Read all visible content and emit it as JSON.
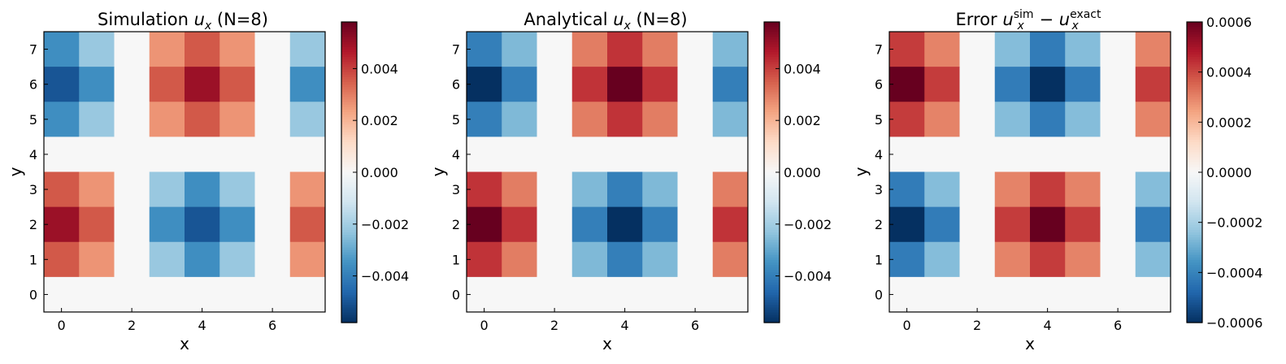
{
  "chart_data": [
    {
      "type": "heatmap",
      "title_main": "Simulation ",
      "title_sym": "u",
      "title_sub": "x",
      "title_tail": " (N=8)",
      "xlabel": "x",
      "ylabel": "y",
      "xticks": [
        0,
        2,
        4,
        6
      ],
      "yticks": [
        0,
        1,
        2,
        3,
        4,
        5,
        6,
        7
      ],
      "vlim": [
        -0.0058,
        0.0058
      ],
      "colorbar_ticks": [
        -0.004,
        -0.002,
        0.0,
        0.002,
        0.004
      ],
      "colorbar_tick_labels": [
        "−0.004",
        "−0.002",
        "0.000",
        "0.002",
        "0.004"
      ],
      "grid_rows_top_to_bottom_y": [
        7,
        6,
        5,
        4,
        3,
        2,
        1,
        0
      ],
      "values": [
        [
          -0.0036,
          -0.0022,
          0,
          0.0026,
          0.0036,
          0.0026,
          0,
          -0.0022
        ],
        [
          -0.005,
          -0.0036,
          0,
          0.0036,
          0.005,
          0.0036,
          0,
          -0.0036
        ],
        [
          -0.0036,
          -0.0022,
          0,
          0.0026,
          0.0036,
          0.0026,
          0,
          -0.0022
        ],
        [
          0,
          0,
          0,
          0,
          0,
          0,
          0,
          0
        ],
        [
          0.0036,
          0.0026,
          0,
          -0.0022,
          -0.0036,
          -0.0022,
          0,
          0.0026
        ],
        [
          0.005,
          0.0036,
          0,
          -0.0036,
          -0.005,
          -0.0036,
          0,
          0.0036
        ],
        [
          0.0036,
          0.0026,
          0,
          -0.0022,
          -0.0036,
          -0.0022,
          0,
          0.0026
        ],
        [
          0,
          0,
          0,
          0,
          0,
          0,
          0,
          0
        ]
      ]
    },
    {
      "type": "heatmap",
      "title_main": "Analytical ",
      "title_sym": "u",
      "title_sub": "x",
      "title_tail": " (N=8)",
      "xlabel": "x",
      "ylabel": "y",
      "xticks": [
        0,
        2,
        4,
        6
      ],
      "yticks": [
        0,
        1,
        2,
        3,
        4,
        5,
        6,
        7
      ],
      "vlim": [
        -0.0058,
        0.0058
      ],
      "colorbar_ticks": [
        -0.004,
        -0.002,
        0.0,
        0.002,
        0.004
      ],
      "colorbar_tick_labels": [
        "−0.004",
        "−0.002",
        "0.000",
        "0.002",
        "0.004"
      ],
      "grid_rows_top_to_bottom_y": [
        7,
        6,
        5,
        4,
        3,
        2,
        1,
        0
      ],
      "values": [
        [
          -0.004,
          -0.0026,
          0,
          0.003,
          0.0042,
          0.003,
          0,
          -0.0026
        ],
        [
          -0.0058,
          -0.004,
          0,
          0.0042,
          0.0058,
          0.0042,
          0,
          -0.004
        ],
        [
          -0.004,
          -0.0026,
          0,
          0.003,
          0.0042,
          0.003,
          0,
          -0.0026
        ],
        [
          0,
          0,
          0,
          0,
          0,
          0,
          0,
          0
        ],
        [
          0.0042,
          0.003,
          0,
          -0.0026,
          -0.004,
          -0.0026,
          0,
          0.003
        ],
        [
          0.0058,
          0.0042,
          0,
          -0.004,
          -0.0058,
          -0.004,
          0,
          0.0042
        ],
        [
          0.0042,
          0.003,
          0,
          -0.0026,
          -0.004,
          -0.0026,
          0,
          0.003
        ],
        [
          0,
          0,
          0,
          0,
          0,
          0,
          0,
          0
        ]
      ]
    },
    {
      "type": "heatmap",
      "title_main": "Error ",
      "title_sym": "u",
      "title_sub": "x",
      "title_sup1": "sim",
      "title_minus": " − ",
      "title_sup2": "exact",
      "xlabel": "x",
      "ylabel": "y",
      "xticks": [
        0,
        2,
        4,
        6
      ],
      "yticks": [
        0,
        1,
        2,
        3,
        4,
        5,
        6,
        7
      ],
      "vlim": [
        -0.0006,
        0.0006
      ],
      "colorbar_ticks": [
        -0.0006,
        -0.0004,
        -0.0002,
        0.0,
        0.0002,
        0.0004,
        0.0006
      ],
      "colorbar_tick_labels": [
        "−0.0006",
        "−0.0004",
        "−0.0002",
        "0.0000",
        "0.0002",
        "0.0004",
        "0.0006"
      ],
      "grid_rows_top_to_bottom_y": [
        7,
        6,
        5,
        4,
        3,
        2,
        1,
        0
      ],
      "values": [
        [
          0.00042,
          0.0003,
          0,
          -0.00026,
          -0.00042,
          -0.00026,
          0,
          0.0003
        ],
        [
          0.0006,
          0.00042,
          0,
          -0.00042,
          -0.0006,
          -0.00042,
          0,
          0.00042
        ],
        [
          0.00042,
          0.0003,
          0,
          -0.00026,
          -0.00042,
          -0.00026,
          0,
          0.0003
        ],
        [
          0,
          0,
          0,
          0,
          0,
          0,
          0,
          0
        ],
        [
          -0.00042,
          -0.00026,
          0,
          0.0003,
          0.00042,
          0.0003,
          0,
          -0.00026
        ],
        [
          -0.0006,
          -0.00042,
          0,
          0.00042,
          0.0006,
          0.00042,
          0,
          -0.00042
        ],
        [
          -0.00042,
          -0.00026,
          0,
          0.0003,
          0.00042,
          0.0003,
          0,
          -0.00026
        ],
        [
          0,
          0,
          0,
          0,
          0,
          0,
          0,
          0
        ]
      ]
    }
  ],
  "colormap": {
    "name": "RdBu_r",
    "stops": [
      "#053061",
      "#2166ac",
      "#4393c3",
      "#92c5de",
      "#d1e5f0",
      "#f7f7f7",
      "#fddbc7",
      "#f4a582",
      "#d6604d",
      "#b2182b",
      "#67001f"
    ]
  }
}
